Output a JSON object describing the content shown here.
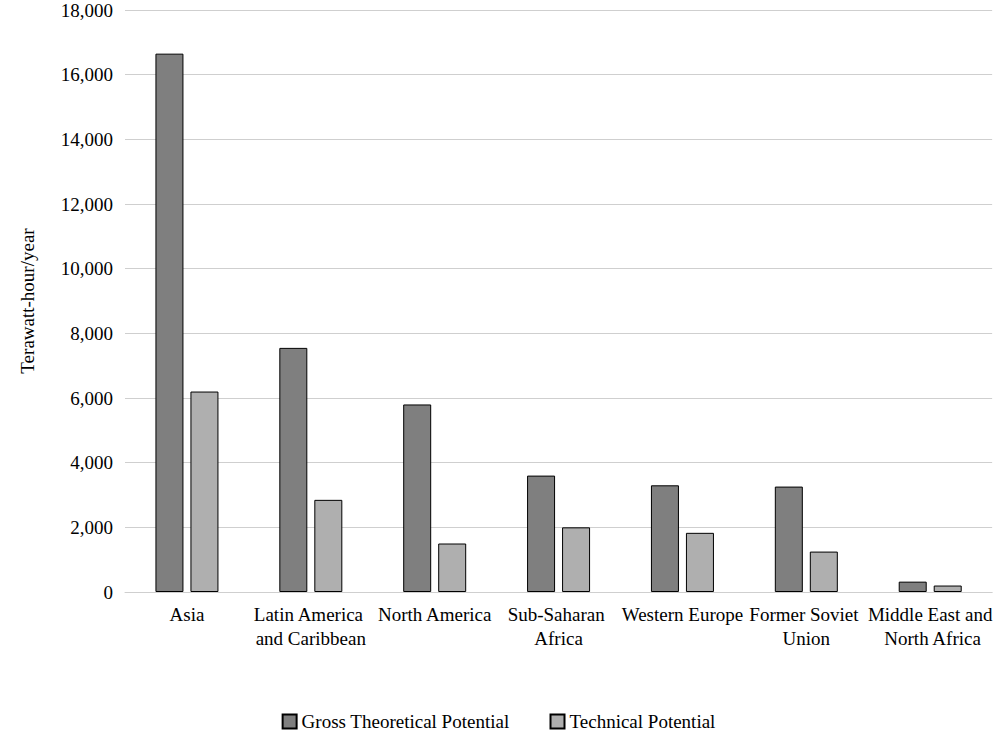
{
  "chart_data": {
    "type": "bar",
    "ylabel": "Terawatt-hour/year",
    "categories": [
      "Asia",
      "Latin America and Caribbean",
      "North America",
      "Sub-Saharan Africa",
      "Western Europe",
      "Former Soviet Union",
      "Middle East and North Africa"
    ],
    "series": [
      {
        "name": "Gross Theoretical Potential",
        "color": "#7f7f7f",
        "values": [
          16650,
          7550,
          5800,
          3600,
          3300,
          3260,
          320
        ]
      },
      {
        "name": "Technical Potential",
        "color": "#afafaf",
        "values": [
          6200,
          2850,
          1500,
          2000,
          1830,
          1250,
          200
        ]
      }
    ],
    "ylim": [
      0,
      18000
    ],
    "yticks": [
      0,
      {
        "value": 2000,
        "label": "2,000"
      },
      {
        "value": 4000,
        "label": "4,000"
      },
      {
        "value": 6000,
        "label": "6,000"
      },
      {
        "value": 8000,
        "label": "8,000"
      },
      {
        "value": 10000,
        "label": "10,000"
      },
      {
        "value": 12000,
        "label": "12,000"
      },
      {
        "value": 14000,
        "label": "14,000"
      },
      {
        "value": 16000,
        "label": "16,000"
      },
      {
        "value": 18000,
        "label": "18,000"
      }
    ],
    "grid": true,
    "legend": "bottom"
  }
}
